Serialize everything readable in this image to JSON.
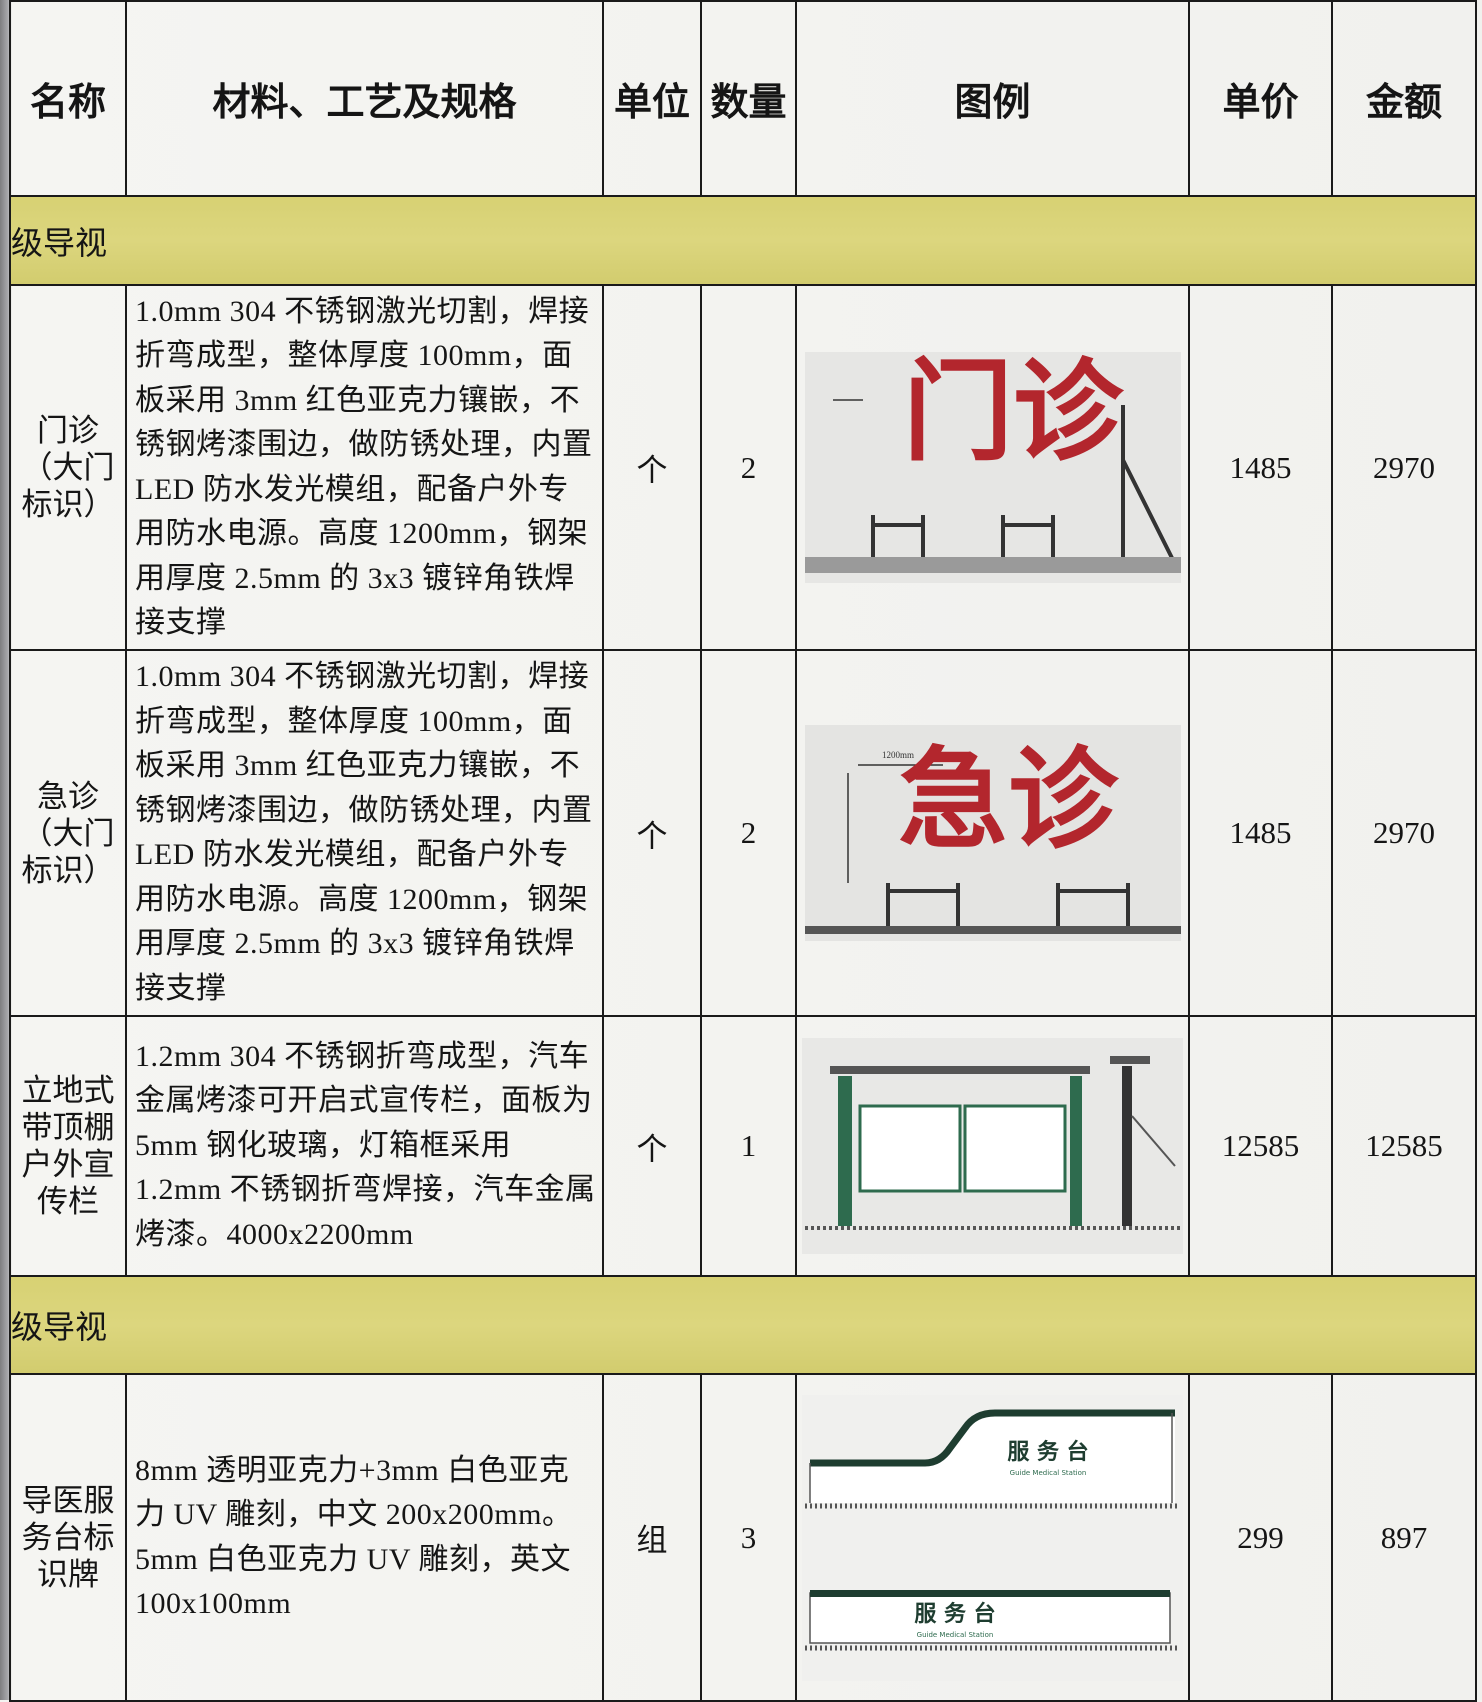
{
  "table": {
    "headers": [
      "名称",
      "材料、工艺及规格",
      "单位",
      "数量",
      "图例",
      "单价",
      "金额"
    ],
    "sections": [
      {
        "title": "级导视",
        "rows": [
          {
            "name": "门诊（大门标识）",
            "spec": "1.0mm 304 不锈钢激光切割，焊接折弯成型，整体厚度 100mm，面板采用 3mm 红色亚克力镶嵌，不锈钢烤漆围边，做防锈处理，内置 LED 防水发光模组，配备户外专用防水电源。高度 1200mm，钢架用厚度 2.5mm 的 3x3 镀锌角铁焊接支撑",
            "unit": "个",
            "qty": 2,
            "figure": {
              "label": "门诊"
            },
            "unit_price": 1485,
            "amount": 2970
          },
          {
            "name": "急诊（大门标识）",
            "spec": "1.0mm 304 不锈钢激光切割，焊接折弯成型，整体厚度 100mm，面板采用 3mm 红色亚克力镶嵌，不锈钢烤漆围边，做防锈处理，内置 LED 防水发光模组，配备户外专用防水电源。高度 1200mm，钢架用厚度 2.5mm 的 3x3 镀锌角铁焊接支撑",
            "unit": "个",
            "qty": 2,
            "figure": {
              "label": "急诊",
              "dimension": "1200mm"
            },
            "unit_price": 1485,
            "amount": 2970
          },
          {
            "name": "立地式带顶棚户外宣传栏",
            "spec": "1.2mm 304 不锈钢折弯成型，汽车金属烤漆可开启式宣传栏，面板为 5mm 钢化玻璃，灯箱框采用 1.2mm 不锈钢折弯焊接，汽车金属烤漆。4000x2200mm",
            "unit": "个",
            "qty": 1,
            "unit_price": 12585,
            "amount": 12585
          }
        ]
      },
      {
        "title": "级导视",
        "rows": [
          {
            "name": "导医服务台标识牌",
            "spec": "8mm 透明亚克力+3mm 白色亚克力 UV 雕刻，中文 200x200mm。5mm 白色亚克力 UV 雕刻，英文 100x100mm",
            "unit": "组",
            "qty": 3,
            "figure": {
              "label": "服 务 台",
              "english": "Guide Medical Station"
            },
            "unit_price": 299,
            "amount": 897
          }
        ]
      }
    ]
  }
}
